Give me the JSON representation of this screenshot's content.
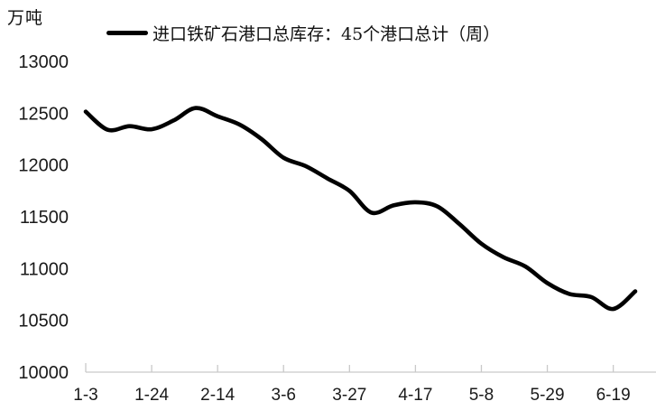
{
  "unit_label": "万吨",
  "legend": {
    "label": "进口铁矿石港口总库存：45个港口总计（周）",
    "swatch_color": "#000000"
  },
  "chart_data": {
    "type": "line",
    "title": "",
    "ylabel": "万吨",
    "xlabel": "",
    "grid": false,
    "legend_position": "top",
    "line_color": "#000000",
    "axis_color": "#c9c9c9",
    "text_color": "#1a1a1a",
    "ylim": [
      10000,
      13000
    ],
    "y_ticks": [
      13000,
      12500,
      12000,
      11500,
      11000,
      10500,
      10000
    ],
    "x_tick_labels": [
      "1-3",
      "1-24",
      "2-14",
      "3-6",
      "3-27",
      "4-17",
      "5-8",
      "5-29",
      "6-19"
    ],
    "x": [
      "1-3",
      "1-10",
      "1-17",
      "1-24",
      "1-31",
      "2-7",
      "2-14",
      "2-21",
      "2-28",
      "3-6",
      "3-13",
      "3-20",
      "3-27",
      "4-3",
      "4-10",
      "4-17",
      "4-24",
      "5-1",
      "5-8",
      "5-15",
      "5-22",
      "5-29",
      "6-5",
      "6-12",
      "6-19",
      "6-26"
    ],
    "series": [
      {
        "name": "进口铁矿石港口总库存：45个港口总计（周）",
        "values": [
          12515,
          12340,
          12375,
          12345,
          12430,
          12550,
          12470,
          12390,
          12250,
          12070,
          11990,
          11870,
          11750,
          11540,
          11610,
          11640,
          11600,
          11430,
          11240,
          11110,
          11020,
          10860,
          10755,
          10725,
          10610,
          10780
        ]
      }
    ]
  }
}
